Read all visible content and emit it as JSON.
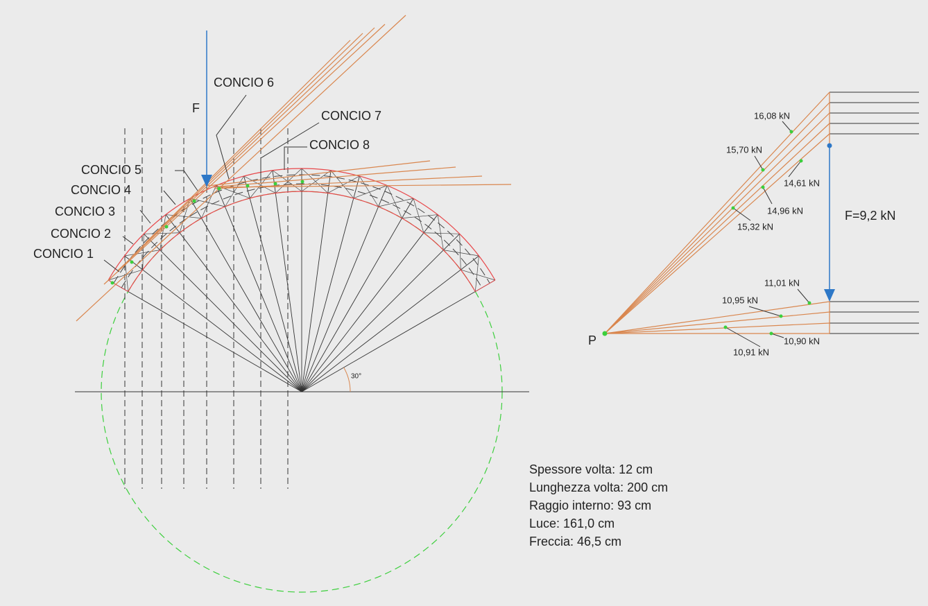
{
  "concio": [
    "CONCIO 1",
    "CONCIO 2",
    "CONCIO 3",
    "CONCIO 4",
    "CONCIO 5",
    "CONCIO 6",
    "CONCIO 7",
    "CONCIO 8"
  ],
  "force_label": "F",
  "angle_label": "30°",
  "pole_label": "P",
  "load_label": "F=9,2 kN",
  "forces": [
    "16,08 kN",
    "15,70 kN",
    "14,61 kN",
    "14,96 kN",
    "15,32 kN",
    "11,01 kN",
    "10,95 kN",
    "10,90 kN",
    "10,91 kN"
  ],
  "info": [
    "Spessore volta: 12 cm",
    "Lunghezza volta: 200 cm",
    "Raggio interno: 93 cm",
    "Luce: 161,0 cm",
    "Freccia: 46,5 cm"
  ]
}
